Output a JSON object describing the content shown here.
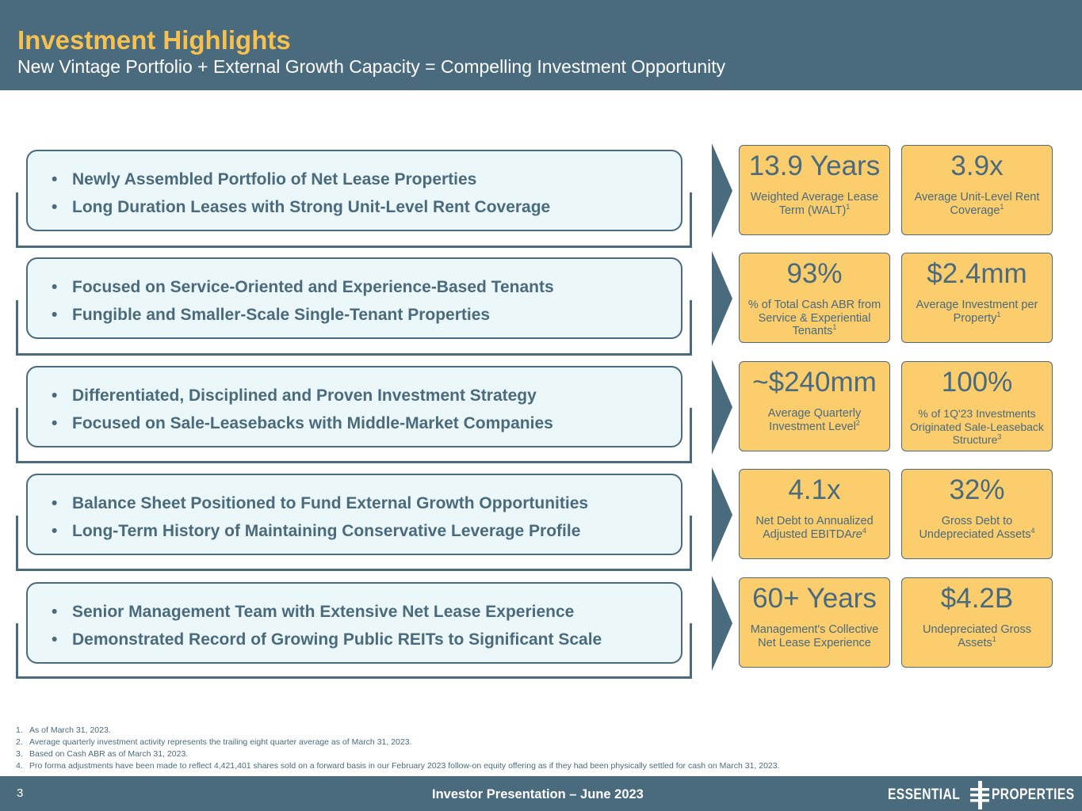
{
  "header": {
    "title": "Investment Highlights",
    "subtitle": "New Vintage Portfolio + External Growth Capacity = Compelling Investment Opportunity"
  },
  "highlights": [
    {
      "lines": [
        "Newly Assembled Portfolio of Net Lease Properties",
        "Long Duration Leases with Strong Unit-Level Rent Coverage"
      ]
    },
    {
      "lines": [
        "Focused on Service-Oriented and Experience-Based Tenants",
        "Fungible and Smaller-Scale Single-Tenant Properties"
      ]
    },
    {
      "lines": [
        "Differentiated, Disciplined and Proven Investment Strategy",
        "Focused on Sale-Leasebacks with Middle-Market Companies"
      ]
    },
    {
      "lines": [
        "Balance Sheet Positioned to Fund External Growth Opportunities",
        "Long-Term History of Maintaining Conservative Leverage Profile"
      ]
    },
    {
      "lines": [
        "Senior Management Team with Extensive Net Lease Experience",
        "Demonstrated Record of Growing Public REITs to Significant Scale"
      ]
    }
  ],
  "bullet_char": "•",
  "metrics": [
    {
      "value": "13.9 Years",
      "label": "Weighted Average Lease Term (WALT)",
      "note": "1"
    },
    {
      "value": "3.9x",
      "label": "Average Unit-Level Rent Coverage",
      "note": "1"
    },
    {
      "value": "93%",
      "label": "% of Total Cash ABR from Service & Experiential Tenants",
      "note": "1"
    },
    {
      "value": "$2.4mm",
      "label": "Average Investment per Property",
      "note": "1"
    },
    {
      "value": "~$240mm",
      "label": "Average Quarterly Investment Level",
      "note": "2"
    },
    {
      "value": "100%",
      "label": "% of 1Q'23 Investments Originated Sale-Leaseback Structure",
      "note": "3"
    },
    {
      "value": "4.1x",
      "label": "Net Debt to Annualized Adjusted EBITDA",
      "label_italic": "re",
      "note": "4"
    },
    {
      "value": "32%",
      "label": "Gross Debt to Undepreciated Assets",
      "note": "4"
    },
    {
      "value": "60+ Years",
      "label": "Management's Collective Net Lease Experience",
      "note": ""
    },
    {
      "value": "$4.2B",
      "label": "Undepreciated Gross Assets",
      "note": "1"
    }
  ],
  "footnotes": [
    {
      "num": "1.",
      "text": "As of March 31, 2023."
    },
    {
      "num": "2.",
      "text": "Average quarterly investment activity represents the trailing eight quarter average as of March 31, 2023."
    },
    {
      "num": "3.",
      "text": "Based on Cash ABR as of March 31, 2023."
    },
    {
      "num": "4.",
      "text": "Pro forma adjustments have been made to reflect 4,421,401 shares sold on a forward basis in our February 2023 follow-on equity offering as if they had been physically settled for cash on March 31, 2023."
    }
  ],
  "footer": {
    "page_number": "3",
    "center_text": "Investor Presentation – June 2023",
    "logo_left": "ESSENTIAL",
    "logo_right": "PROPERTIES"
  },
  "colors": {
    "navy": "#4a6a7e",
    "gold": "#f6c14e",
    "card": "#fbcd6d",
    "pill": "#ebf7f8"
  }
}
